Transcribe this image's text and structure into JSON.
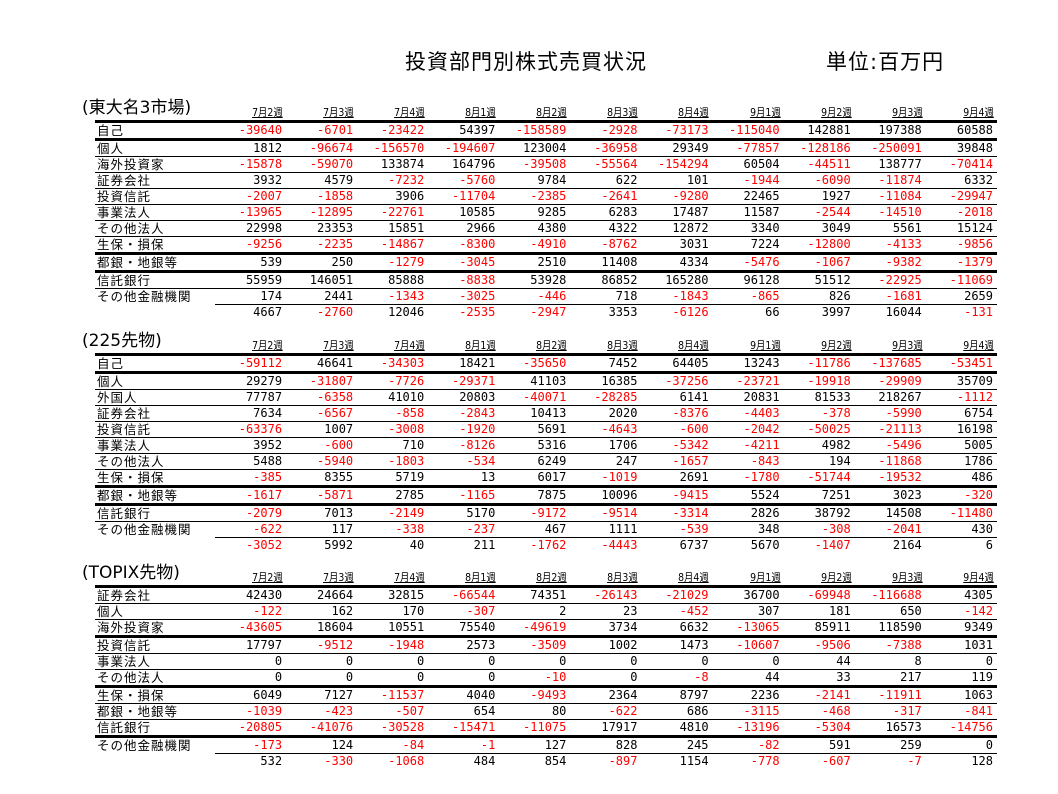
{
  "header": {
    "title": "投資部門別株式売買状況",
    "unit": "単位:百万円"
  },
  "weeks": [
    "7月2週",
    "7月3週",
    "7月4週",
    "8月1週",
    "8月2週",
    "8月3週",
    "8月4週",
    "9月1週",
    "9月2週",
    "9月3週",
    "9月4週"
  ],
  "colors": {
    "negative": "#ff0000",
    "positive": "#000000"
  },
  "tables": [
    {
      "label": "(東大名3市場)",
      "rows": [
        {
          "name": "自己",
          "values": [
            "-39640",
            "-6701",
            "-23422",
            "54397",
            "-158589",
            "-2928",
            "-73173",
            "-115040",
            "142881",
            "197388",
            "60588"
          ]
        },
        {
          "name": "個人",
          "values": [
            "1812",
            "-96674",
            "-156570",
            "-194607",
            "123004",
            "-36958",
            "29349",
            "-77857",
            "-128186",
            "-250091",
            "39848"
          ]
        },
        {
          "name": "海外投資家",
          "values": [
            "-15878",
            "-59070",
            "133874",
            "164796",
            "-39508",
            "-55564",
            "-154294",
            "60504",
            "-44511",
            "138777",
            "-70414"
          ]
        },
        {
          "name": "証券会社",
          "values": [
            "3932",
            "4579",
            "-7232",
            "-5760",
            "9784",
            "622",
            "101",
            "-1944",
            "-6090",
            "-11874",
            "6332"
          ]
        },
        {
          "name": "投資信託",
          "values": [
            "-2007",
            "-1858",
            "3906",
            "-11704",
            "-2385",
            "-2641",
            "-9280",
            "22465",
            "1927",
            "-11084",
            "-29947"
          ]
        },
        {
          "name": "事業法人",
          "values": [
            "-13965",
            "-12895",
            "-22761",
            "10585",
            "9285",
            "6283",
            "17487",
            "11587",
            "-2544",
            "-14510",
            "-2018"
          ]
        },
        {
          "name": "その他法人",
          "values": [
            "22998",
            "23353",
            "15851",
            "2966",
            "4380",
            "4322",
            "12872",
            "3340",
            "3049",
            "5561",
            "15124"
          ]
        },
        {
          "name": "生保・損保",
          "values": [
            "-9256",
            "-2235",
            "-14867",
            "-8300",
            "-4910",
            "-8762",
            "3031",
            "7224",
            "-12800",
            "-4133",
            "-9856"
          ]
        },
        {
          "name": "都銀・地銀等",
          "values": [
            "539",
            "250",
            "-1279",
            "-3045",
            "2510",
            "11408",
            "4334",
            "-5476",
            "-1067",
            "-9382",
            "-1379"
          ]
        },
        {
          "name": "信託銀行",
          "values": [
            "55959",
            "146051",
            "85888",
            "-8838",
            "53928",
            "86852",
            "165280",
            "96128",
            "51512",
            "-22925",
            "-11069"
          ]
        },
        {
          "name": "その他金融機関",
          "values": [
            "174",
            "2441",
            "-1343",
            "-3025",
            "-446",
            "718",
            "-1843",
            "-865",
            "826",
            "-1681",
            "2659"
          ]
        },
        {
          "name": "",
          "values": [
            "4667",
            "-2760",
            "12046",
            "-2535",
            "-2947",
            "3353",
            "-6126",
            "66",
            "3997",
            "16044",
            "-131"
          ]
        }
      ]
    },
    {
      "label": "(225先物)",
      "rows": [
        {
          "name": "自己",
          "values": [
            "-59112",
            "46641",
            "-34303",
            "18421",
            "-35650",
            "7452",
            "64405",
            "13243",
            "-11786",
            "-137685",
            "-53451"
          ]
        },
        {
          "name": "個人",
          "values": [
            "29279",
            "-31807",
            "-7726",
            "-29371",
            "41103",
            "16385",
            "-37256",
            "-23721",
            "-19918",
            "-29909",
            "35709"
          ]
        },
        {
          "name": "外国人",
          "values": [
            "77787",
            "-6358",
            "41010",
            "20803",
            "-40071",
            "-28285",
            "6141",
            "20831",
            "81533",
            "218267",
            "-1112"
          ]
        },
        {
          "name": "証券会社",
          "values": [
            "7634",
            "-6567",
            "-858",
            "-2843",
            "10413",
            "2020",
            "-8376",
            "-4403",
            "-378",
            "-5990",
            "6754"
          ]
        },
        {
          "name": "投資信託",
          "values": [
            "-63376",
            "1007",
            "-3008",
            "-1920",
            "5691",
            "-4643",
            "-600",
            "-2042",
            "-50025",
            "-21113",
            "16198"
          ]
        },
        {
          "name": "事業法人",
          "values": [
            "3952",
            "-600",
            "710",
            "-8126",
            "5316",
            "1706",
            "-5342",
            "-4211",
            "4982",
            "-5496",
            "5005"
          ]
        },
        {
          "name": "その他法人",
          "values": [
            "5488",
            "-5940",
            "-1803",
            "-534",
            "6249",
            "247",
            "-1657",
            "-843",
            "194",
            "-11868",
            "1786"
          ]
        },
        {
          "name": "生保・損保",
          "values": [
            "-385",
            "8355",
            "5719",
            "13",
            "6017",
            "-1019",
            "2691",
            "-1780",
            "-51744",
            "-19532",
            "486"
          ]
        },
        {
          "name": "都銀・地銀等",
          "values": [
            "-1617",
            "-5871",
            "2785",
            "-1165",
            "7875",
            "10096",
            "-9415",
            "5524",
            "7251",
            "3023",
            "-320"
          ]
        },
        {
          "name": "信託銀行",
          "values": [
            "-2079",
            "7013",
            "-2149",
            "5170",
            "-9172",
            "-9514",
            "-3314",
            "2826",
            "38792",
            "14508",
            "-11480"
          ]
        },
        {
          "name": "その他金融機関",
          "values": [
            "-622",
            "117",
            "-338",
            "-237",
            "467",
            "1111",
            "-539",
            "348",
            "-308",
            "-2041",
            "430"
          ]
        },
        {
          "name": "",
          "values": [
            "-3052",
            "5992",
            "40",
            "211",
            "-1762",
            "-4443",
            "6737",
            "5670",
            "-1407",
            "2164",
            "6"
          ]
        }
      ]
    },
    {
      "label": "(TOPIX先物)",
      "rows": [
        {
          "name": "証券会社",
          "values": [
            "42430",
            "24664",
            "32815",
            "-66544",
            "74351",
            "-26143",
            "-21029",
            "36700",
            "-69948",
            "-116688",
            "4305"
          ]
        },
        {
          "name": "個人",
          "values": [
            "-122",
            "162",
            "170",
            "-307",
            "2",
            "23",
            "-452",
            "307",
            "181",
            "650",
            "-142"
          ]
        },
        {
          "name": "海外投資家",
          "values": [
            "-43605",
            "18604",
            "10551",
            "75540",
            "-49619",
            "3734",
            "6632",
            "-13065",
            "85911",
            "118590",
            "9349"
          ]
        },
        {
          "name": "投資信託",
          "values": [
            "17797",
            "-9512",
            "-1948",
            "2573",
            "-3509",
            "1002",
            "1473",
            "-10607",
            "-9506",
            "-7388",
            "1031"
          ]
        },
        {
          "name": "事業法人",
          "values": [
            "0",
            "0",
            "0",
            "0",
            "0",
            "0",
            "0",
            "0",
            "44",
            "8",
            "0"
          ]
        },
        {
          "name": "その他法人",
          "values": [
            "0",
            "0",
            "0",
            "0",
            "-10",
            "0",
            "-8",
            "44",
            "33",
            "217",
            "119"
          ]
        },
        {
          "name": "生保・損保",
          "values": [
            "6049",
            "7127",
            "-11537",
            "4040",
            "-9493",
            "2364",
            "8797",
            "2236",
            "-2141",
            "-11911",
            "1063"
          ]
        },
        {
          "name": "都銀・地銀等",
          "values": [
            "-1039",
            "-423",
            "-507",
            "654",
            "80",
            "-622",
            "686",
            "-3115",
            "-468",
            "-317",
            "-841"
          ]
        },
        {
          "name": "信託銀行",
          "values": [
            "-20805",
            "-41076",
            "-30528",
            "-15471",
            "-11075",
            "17917",
            "4810",
            "-13196",
            "-5304",
            "16573",
            "-14756"
          ]
        },
        {
          "name": "その他金融機関",
          "values": [
            "-173",
            "124",
            "-84",
            "-1",
            "127",
            "828",
            "245",
            "-82",
            "591",
            "259",
            "0"
          ]
        },
        {
          "name": "",
          "values": [
            "532",
            "-330",
            "-1068",
            "484",
            "854",
            "-897",
            "1154",
            "-778",
            "-607",
            "-7",
            "128"
          ]
        }
      ]
    }
  ]
}
